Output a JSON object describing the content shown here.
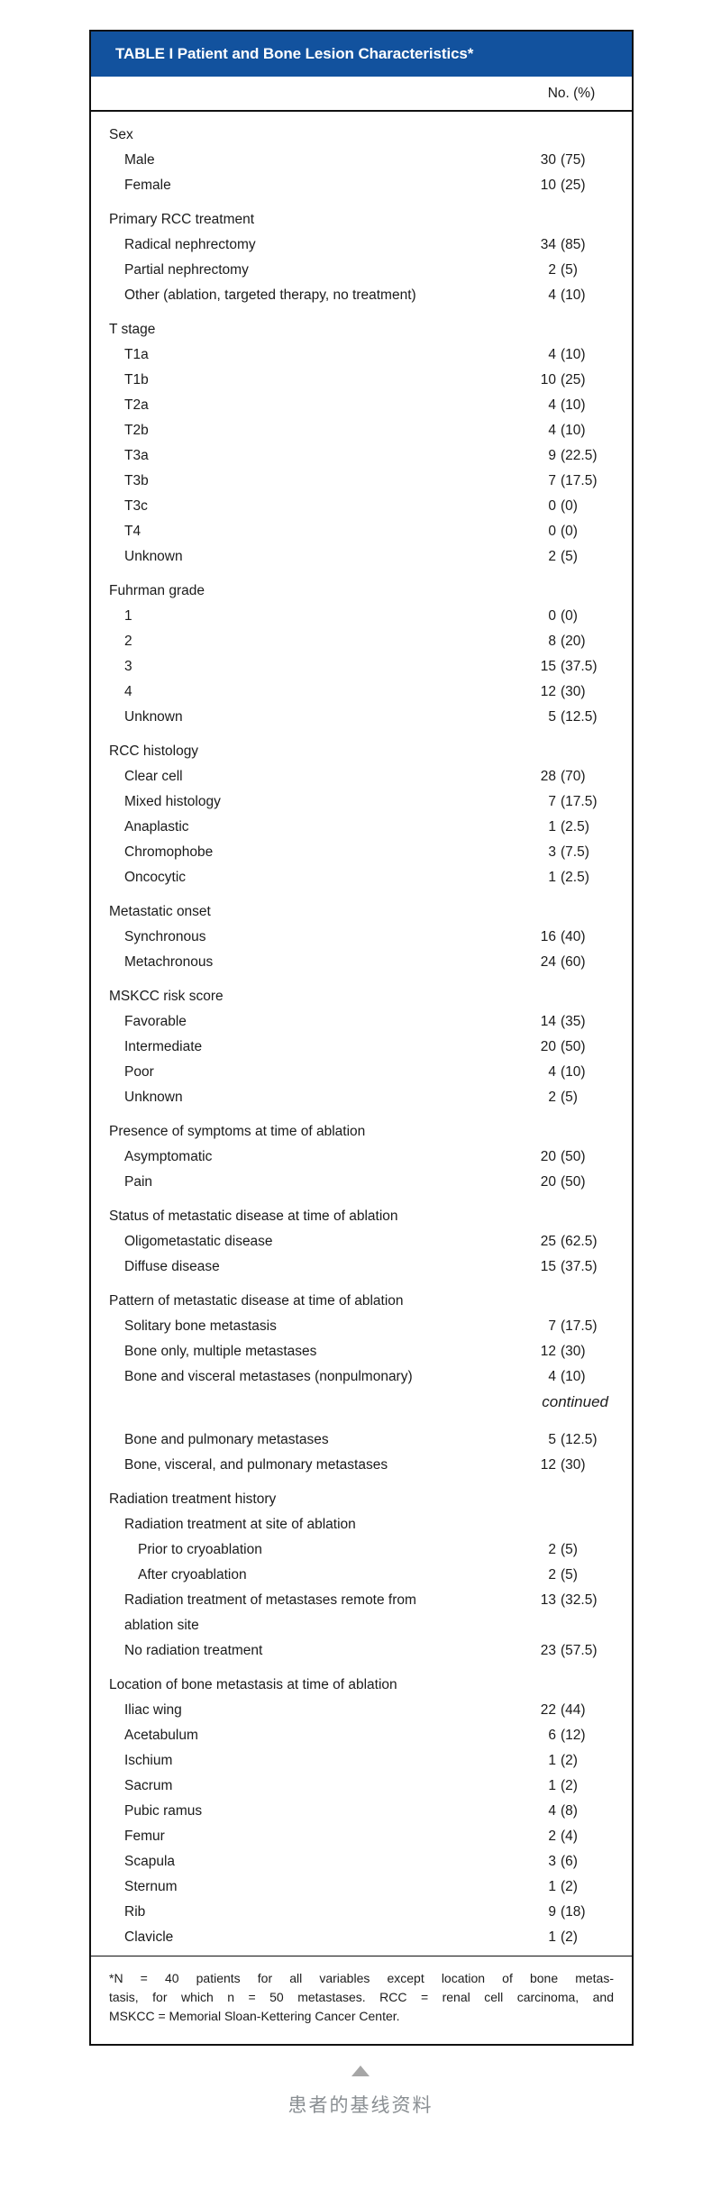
{
  "colors": {
    "header_bg": "#12529E",
    "header_text": "#FFFFFF",
    "border": "#111111",
    "body_text": "#1B1B1B",
    "caption_text": "#8A8F93",
    "caret": "#A6A6A6"
  },
  "table": {
    "title": "TABLE I Patient and Bone Lesion Characteristics*",
    "column_header": "No. (%)",
    "continued_label": "continued",
    "sections": [
      {
        "header": "Sex",
        "rows": [
          {
            "label": "Male",
            "count": "30",
            "pct": "(75)",
            "indent": 1
          },
          {
            "label": "Female",
            "count": "10",
            "pct": "(25)",
            "indent": 1
          }
        ]
      },
      {
        "header": "Primary RCC treatment",
        "rows": [
          {
            "label": "Radical nephrectomy",
            "count": "34",
            "pct": "(85)",
            "indent": 1
          },
          {
            "label": "Partial nephrectomy",
            "count": "2",
            "pct": "(5)",
            "indent": 1
          },
          {
            "label": "Other (ablation, targeted therapy, no treatment)",
            "count": "4",
            "pct": "(10)",
            "indent": 1
          }
        ]
      },
      {
        "header": "T stage",
        "rows": [
          {
            "label": "T1a",
            "count": "4",
            "pct": "(10)",
            "indent": 1
          },
          {
            "label": "T1b",
            "count": "10",
            "pct": "(25)",
            "indent": 1
          },
          {
            "label": "T2a",
            "count": "4",
            "pct": "(10)",
            "indent": 1
          },
          {
            "label": "T2b",
            "count": "4",
            "pct": "(10)",
            "indent": 1
          },
          {
            "label": "T3a",
            "count": "9",
            "pct": "(22.5)",
            "indent": 1
          },
          {
            "label": "T3b",
            "count": "7",
            "pct": "(17.5)",
            "indent": 1
          },
          {
            "label": "T3c",
            "count": "0",
            "pct": "(0)",
            "indent": 1
          },
          {
            "label": "T4",
            "count": "0",
            "pct": "(0)",
            "indent": 1
          },
          {
            "label": "Unknown",
            "count": "2",
            "pct": "(5)",
            "indent": 1
          }
        ]
      },
      {
        "header": "Fuhrman grade",
        "rows": [
          {
            "label": "1",
            "count": "0",
            "pct": "(0)",
            "indent": 1
          },
          {
            "label": "2",
            "count": "8",
            "pct": "(20)",
            "indent": 1
          },
          {
            "label": "3",
            "count": "15",
            "pct": "(37.5)",
            "indent": 1
          },
          {
            "label": "4",
            "count": "12",
            "pct": "(30)",
            "indent": 1
          },
          {
            "label": "Unknown",
            "count": "5",
            "pct": "(12.5)",
            "indent": 1
          }
        ]
      },
      {
        "header": "RCC histology",
        "rows": [
          {
            "label": "Clear cell",
            "count": "28",
            "pct": "(70)",
            "indent": 1
          },
          {
            "label": "Mixed histology",
            "count": "7",
            "pct": "(17.5)",
            "indent": 1
          },
          {
            "label": "Anaplastic",
            "count": "1",
            "pct": "(2.5)",
            "indent": 1
          },
          {
            "label": "Chromophobe",
            "count": "3",
            "pct": "(7.5)",
            "indent": 1
          },
          {
            "label": "Oncocytic",
            "count": "1",
            "pct": "(2.5)",
            "indent": 1
          }
        ]
      },
      {
        "header": "Metastatic onset",
        "rows": [
          {
            "label": "Synchronous",
            "count": "16",
            "pct": "(40)",
            "indent": 1
          },
          {
            "label": "Metachronous",
            "count": "24",
            "pct": "(60)",
            "indent": 1
          }
        ]
      },
      {
        "header": "MSKCC risk score",
        "rows": [
          {
            "label": "Favorable",
            "count": "14",
            "pct": "(35)",
            "indent": 1
          },
          {
            "label": "Intermediate",
            "count": "20",
            "pct": "(50)",
            "indent": 1
          },
          {
            "label": "Poor",
            "count": "4",
            "pct": "(10)",
            "indent": 1
          },
          {
            "label": "Unknown",
            "count": "2",
            "pct": "(5)",
            "indent": 1
          }
        ]
      },
      {
        "header": "Presence of symptoms at time of ablation",
        "rows": [
          {
            "label": "Asymptomatic",
            "count": "20",
            "pct": "(50)",
            "indent": 1
          },
          {
            "label": "Pain",
            "count": "20",
            "pct": "(50)",
            "indent": 1
          }
        ]
      },
      {
        "header": "Status of metastatic disease at time of ablation",
        "rows": [
          {
            "label": "Oligometastatic disease",
            "count": "25",
            "pct": "(62.5)",
            "indent": 1
          },
          {
            "label": "Diffuse disease",
            "count": "15",
            "pct": "(37.5)",
            "indent": 1
          }
        ]
      },
      {
        "header": "Pattern of metastatic disease at time of ablation",
        "rows": [
          {
            "label": "Solitary bone metastasis",
            "count": "7",
            "pct": "(17.5)",
            "indent": 1
          },
          {
            "label": "Bone only, multiple metastases",
            "count": "12",
            "pct": "(30)",
            "indent": 1
          },
          {
            "label": "Bone and visceral metastases (nonpulmonary)",
            "count": "4",
            "pct": "(10)",
            "indent": 1
          },
          {
            "type": "continued"
          },
          {
            "label": "Bone and pulmonary metastases",
            "count": "5",
            "pct": "(12.5)",
            "indent": 1
          },
          {
            "label": "Bone, visceral, and pulmonary metastases",
            "count": "12",
            "pct": "(30)",
            "indent": 1
          }
        ]
      },
      {
        "header": "Radiation treatment history",
        "rows": [
          {
            "label": "Radiation treatment at site of ablation",
            "count": "",
            "pct": "",
            "indent": 1
          },
          {
            "label": "Prior to cryoablation",
            "count": "2",
            "pct": "(5)",
            "indent": 2
          },
          {
            "label": "After cryoablation",
            "count": "2",
            "pct": "(5)",
            "indent": 2
          },
          {
            "label": "Radiation treatment of metastases remote from\nablation site",
            "count": "13",
            "pct": "(32.5)",
            "indent": 1
          },
          {
            "label": "No radiation treatment",
            "count": "23",
            "pct": "(57.5)",
            "indent": 1
          }
        ]
      },
      {
        "header": "Location of bone metastasis at time of ablation",
        "rows": [
          {
            "label": "Iliac wing",
            "count": "22",
            "pct": "(44)",
            "indent": 1
          },
          {
            "label": "Acetabulum",
            "count": "6",
            "pct": "(12)",
            "indent": 1
          },
          {
            "label": "Ischium",
            "count": "1",
            "pct": "(2)",
            "indent": 1
          },
          {
            "label": "Sacrum",
            "count": "1",
            "pct": "(2)",
            "indent": 1
          },
          {
            "label": "Pubic ramus",
            "count": "4",
            "pct": "(8)",
            "indent": 1
          },
          {
            "label": "Femur",
            "count": "2",
            "pct": "(4)",
            "indent": 1
          },
          {
            "label": "Scapula",
            "count": "3",
            "pct": "(6)",
            "indent": 1
          },
          {
            "label": "Sternum",
            "count": "1",
            "pct": "(2)",
            "indent": 1
          },
          {
            "label": "Rib",
            "count": "9",
            "pct": "(18)",
            "indent": 1
          },
          {
            "label": "Clavicle",
            "count": "1",
            "pct": "(2)",
            "indent": 1
          }
        ]
      }
    ],
    "footnote_lines": [
      "*N = 40 patients for all variables except location of bone metas-",
      "tasis, for which n = 50 metastases. RCC = renal cell carcinoma, and",
      "MSKCC = Memorial Sloan-Kettering Cancer Center."
    ]
  },
  "caption": {
    "text": "患者的基线资料"
  }
}
